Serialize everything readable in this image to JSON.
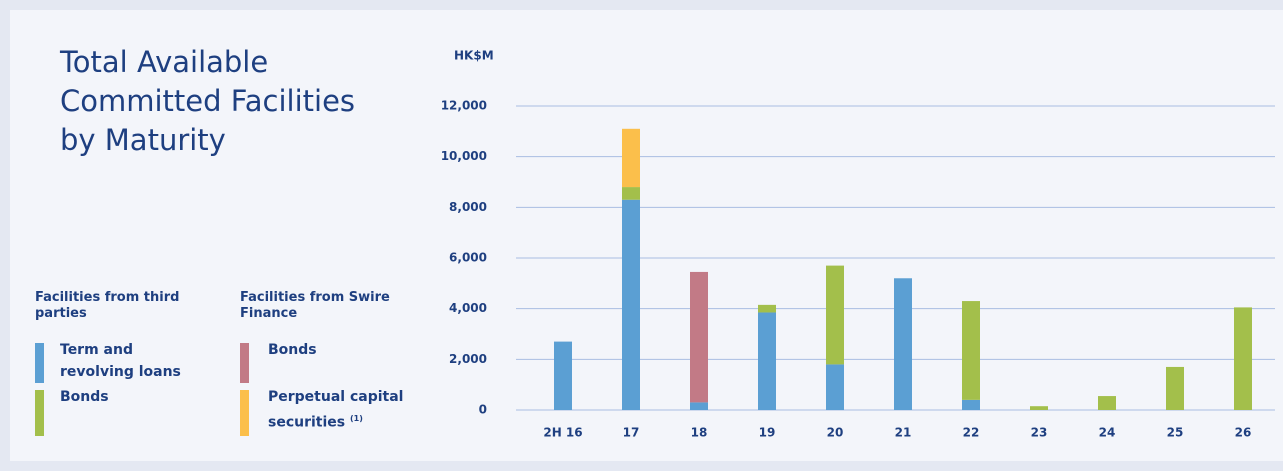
{
  "chart_data": {
    "type": "stacked_bar",
    "title": "Total Available Committed Facilities by Maturity",
    "y_label": "HK$M",
    "categories": [
      "2H 16",
      "17",
      "18",
      "19",
      "20",
      "21",
      "22",
      "23",
      "24",
      "25",
      "26"
    ],
    "legend_groups": [
      {
        "title": "Facilities from third parties",
        "series": [
          0,
          1
        ]
      },
      {
        "title": "Facilities from Swire Finance",
        "series": [
          2,
          3
        ]
      }
    ],
    "series": [
      {
        "name": "Term and revolving loans",
        "color": "#5b9fd3",
        "values": [
          2700,
          8300,
          300,
          3850,
          1800,
          5200,
          400,
          0,
          0,
          0,
          0
        ]
      },
      {
        "name": "Bonds",
        "color": "#a3bf4b",
        "values": [
          0,
          500,
          0,
          300,
          3900,
          0,
          3900,
          150,
          550,
          1700,
          4050
        ]
      },
      {
        "name": "Bonds",
        "color": "#c27a86",
        "values": [
          0,
          0,
          5150,
          0,
          0,
          0,
          0,
          0,
          0,
          0,
          0
        ]
      },
      {
        "name": "Perpetual capital securities",
        "note": "(1)",
        "color": "#fbbf4b",
        "values": [
          0,
          2300,
          0,
          0,
          0,
          0,
          0,
          0,
          0,
          0,
          0
        ]
      }
    ],
    "ylim": [
      0,
      12000
    ],
    "yticks": [
      0,
      {
        "value": 2000,
        "label": "2,000"
      },
      {
        "value": 4000,
        "label": "4,000"
      },
      {
        "value": 6000,
        "label": "6,000"
      },
      {
        "value": 8000,
        "label": "8,000"
      },
      {
        "value": 10000,
        "label": "10,000"
      },
      {
        "value": 12000,
        "label": "12,000"
      }
    ],
    "grid": true
  }
}
